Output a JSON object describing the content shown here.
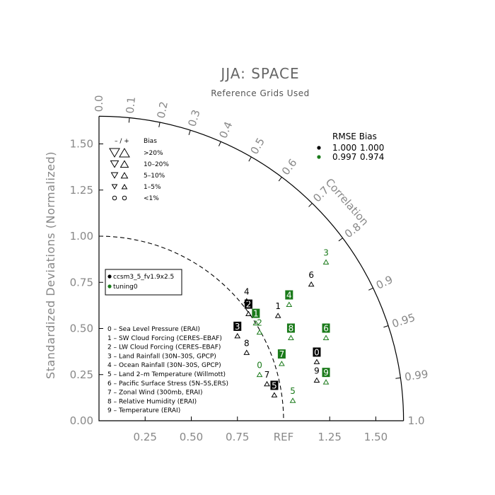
{
  "chart_data": {
    "type": "taylor",
    "title": "JJA: SPACE",
    "subtitle": "Reference Grids Used",
    "ylabel": "Standardized Deviations (Normalized)",
    "correlation_label": "Correlation",
    "ref_label": "REF",
    "std_range": [
      0,
      1.65
    ],
    "x_ticks": [
      {
        "value": 0.25,
        "label": "0.25"
      },
      {
        "value": 0.5,
        "label": "0.50"
      },
      {
        "value": 0.75,
        "label": "0.75"
      },
      {
        "value": 1.25,
        "label": "1.25"
      },
      {
        "value": 1.5,
        "label": "1.50"
      }
    ],
    "y_ticks": [
      {
        "value": 0,
        "label": "0.00"
      },
      {
        "value": 0.25,
        "label": "0.25"
      },
      {
        "value": 0.5,
        "label": "0.50"
      },
      {
        "value": 0.75,
        "label": "0.75"
      },
      {
        "value": 1.0,
        "label": "1.00"
      },
      {
        "value": 1.25,
        "label": "1.25"
      },
      {
        "value": 1.5,
        "label": "1.50"
      }
    ],
    "correlation_ticks": [
      {
        "value": 0.0,
        "label": "0.0"
      },
      {
        "value": 0.1,
        "label": "0.1"
      },
      {
        "value": 0.2,
        "label": "0.2"
      },
      {
        "value": 0.3,
        "label": "0.3"
      },
      {
        "value": 0.4,
        "label": "0.4"
      },
      {
        "value": 0.5,
        "label": "0.5"
      },
      {
        "value": 0.6,
        "label": "0.6"
      },
      {
        "value": 0.7,
        "label": "0.7"
      },
      {
        "value": 0.8,
        "label": "0.8"
      },
      {
        "value": 0.9,
        "label": "0.9"
      },
      {
        "value": 0.95,
        "label": "0.95"
      },
      {
        "value": 0.99,
        "label": "0.99"
      },
      {
        "value": 1.0,
        "label": "1.0"
      }
    ],
    "ref_arc_std": 1.0,
    "series": [
      {
        "name": "ccsm3_5_fv1.9x2.5",
        "color": "#000000",
        "points": [
          {
            "id": "0",
            "x": 1.18,
            "y": 0.37
          },
          {
            "id": "1",
            "x": 0.97,
            "y": 0.62
          },
          {
            "id": "2",
            "x": 0.81,
            "y": 0.63
          },
          {
            "id": "3",
            "x": 0.75,
            "y": 0.51
          },
          {
            "id": "4",
            "x": 0.8,
            "y": 0.7
          },
          {
            "id": "5",
            "x": 0.95,
            "y": 0.19
          },
          {
            "id": "6",
            "x": 1.15,
            "y": 0.79
          },
          {
            "id": "7",
            "x": 0.91,
            "y": 0.25
          },
          {
            "id": "8",
            "x": 0.8,
            "y": 0.42
          },
          {
            "id": "9",
            "x": 1.18,
            "y": 0.27
          }
        ]
      },
      {
        "name": "tuning0",
        "color": "#1a7a1a",
        "points": [
          {
            "id": "0",
            "x": 0.87,
            "y": 0.3
          },
          {
            "id": "1",
            "x": 0.85,
            "y": 0.58
          },
          {
            "id": "2",
            "x": 0.87,
            "y": 0.53
          },
          {
            "id": "3",
            "x": 1.23,
            "y": 0.91
          },
          {
            "id": "4",
            "x": 1.03,
            "y": 0.68
          },
          {
            "id": "5",
            "x": 1.05,
            "y": 0.16
          },
          {
            "id": "6",
            "x": 1.23,
            "y": 0.5
          },
          {
            "id": "7",
            "x": 0.99,
            "y": 0.36
          },
          {
            "id": "8",
            "x": 1.04,
            "y": 0.5
          },
          {
            "id": "9",
            "x": 1.23,
            "y": 0.26
          }
        ]
      }
    ],
    "legend_cases": [
      "ccsm3_5_fv1.9x2.5",
      "tuning0"
    ],
    "rmse_bias": {
      "header": "RMSE  Bias",
      "rows": [
        {
          "rmse": "1.000",
          "bias": "1.000",
          "color": "#000000"
        },
        {
          "rmse": "0.997",
          "bias": "0.974",
          "color": "#1a7a1a"
        }
      ]
    },
    "bias_legend": {
      "header_sign": "– / +",
      "header_label": "Bias",
      "rows": [
        {
          "label": ">20%",
          "size": 7
        },
        {
          "label": "10–20%",
          "size": 5.5
        },
        {
          "label": "5–10%",
          "size": 4.5
        },
        {
          "label": "1–5%",
          "size": 3.5
        },
        {
          "label": "<1%",
          "size": 0
        }
      ]
    },
    "variables": [
      "0 – Sea Level Pressure (ERAI)",
      "1 – SW Cloud Forcing (CERES–EBAF)",
      "2 – LW Cloud Forcing (CERES–EBAF)",
      "3 – Land Rainfall (30N–30S, GPCP)",
      "4 – Ocean Rainfall (30N–30S, GPCP)",
      "5 – Land 2–m Temperature (Willmott)",
      "6 – Pacific Surface Stress (5N–5S,ERS)",
      "7 – Zonal Wind (300mb, ERAI)",
      "8 – Relative Humidity (ERAI)",
      "9 – Temperature (ERAI)"
    ]
  }
}
